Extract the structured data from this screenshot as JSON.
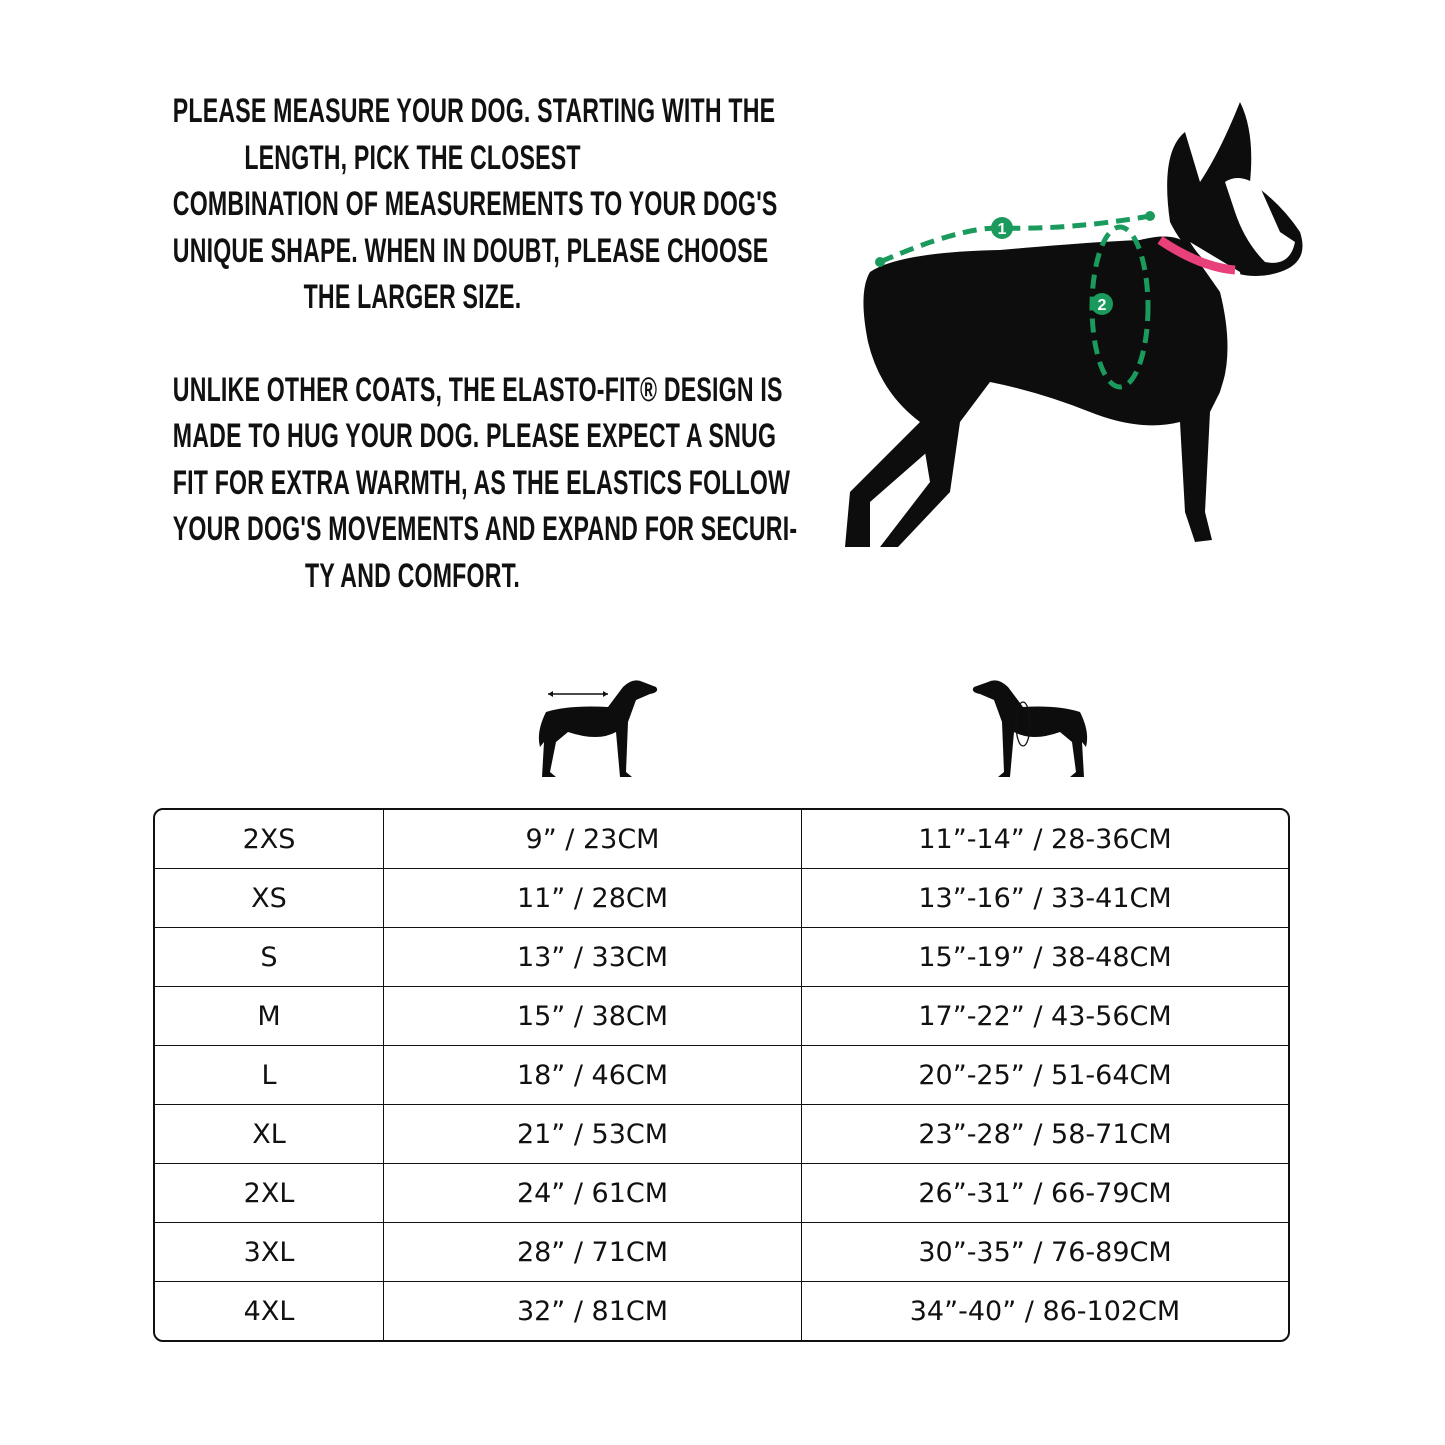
{
  "intro": {
    "paragraph1": [
      "PLEASE MEASURE YOUR DOG. STARTING WITH THE",
      "LENGTH, PICK THE CLOSEST",
      "COMBINATION OF MEASUREMENTS TO YOUR DOG'S",
      "UNIQUE SHAPE. WHEN IN DOUBT, PLEASE CHOOSE",
      "THE LARGER SIZE."
    ],
    "paragraph2": [
      "UNLIKE OTHER COATS, THE ELASTO-FIT® DESIGN IS",
      "MADE TO HUG YOUR DOG. PLEASE EXPECT A SNUG",
      "FIT FOR EXTRA WARMTH, AS THE ELASTICS FOLLOW",
      "YOUR DOG'S MOVEMENTS AND EXPAND FOR SECURI-",
      "TY AND COMFORT."
    ]
  },
  "photo": {
    "markers": [
      "1",
      "2"
    ],
    "measure_color": "#1a9a5c",
    "collar_color": "#e8407a"
  },
  "icons": {
    "length": "dog-length-icon",
    "chest": "dog-chest-girth-icon"
  },
  "table": {
    "rows": [
      [
        "2XS",
        "9” / 23CM",
        "11”-14” / 28-36CM"
      ],
      [
        "XS",
        "11” / 28CM",
        "13”-16” / 33-41CM"
      ],
      [
        "S",
        "13” / 33CM",
        "15”-19” / 38-48CM"
      ],
      [
        "M",
        "15” / 38CM",
        "17”-22” / 43-56CM"
      ],
      [
        "L",
        "18” / 46CM",
        "20”-25” / 51-64CM"
      ],
      [
        "XL",
        "21” / 53CM",
        "23”-28” / 58-71CM"
      ],
      [
        "2XL",
        "24” / 61CM",
        "26”-31” / 66-79CM"
      ],
      [
        "3XL",
        "28” / 71CM",
        "30”-35” / 76-89CM"
      ],
      [
        "4XL",
        "32” / 81CM",
        "34”-40” / 86-102CM"
      ]
    ]
  }
}
